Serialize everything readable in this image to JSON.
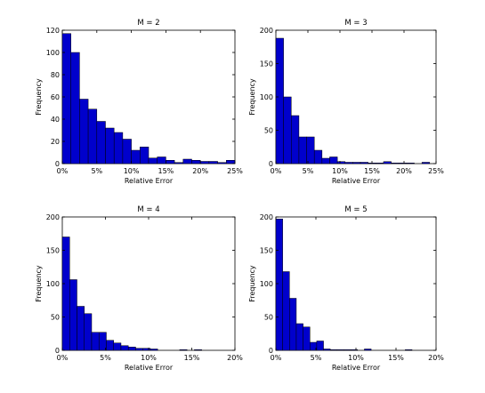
{
  "chart_data": [
    {
      "type": "bar",
      "title": "M = 2",
      "xlabel": "Relative Error",
      "ylabel": "Frequency",
      "xlim": [
        0,
        25
      ],
      "ylim": [
        0,
        120
      ],
      "xticks": [
        0,
        5,
        10,
        15,
        20,
        25
      ],
      "xtick_labels": [
        "0%",
        "5%",
        "10%",
        "15%",
        "20%",
        "25%"
      ],
      "yticks": [
        0,
        20,
        40,
        60,
        80,
        100,
        120
      ],
      "bin_start": 0,
      "bin_width": 1.25,
      "values": [
        117,
        100,
        58,
        49,
        38,
        32,
        28,
        22,
        12,
        15,
        5,
        6,
        3,
        1,
        4,
        3,
        2,
        2,
        1,
        3
      ],
      "bar_color": "#0000cc"
    },
    {
      "type": "bar",
      "title": "M = 3",
      "xlabel": "Relative Error",
      "ylabel": "Frequency",
      "xlim": [
        0,
        25
      ],
      "ylim": [
        0,
        200
      ],
      "xticks": [
        0,
        5,
        10,
        15,
        20,
        25
      ],
      "xtick_labels": [
        "0%",
        "5%",
        "10%",
        "15%",
        "20%",
        "25%"
      ],
      "yticks": [
        0,
        50,
        100,
        150,
        200
      ],
      "bin_start": 0,
      "bin_width": 1.2,
      "values": [
        188,
        100,
        72,
        40,
        40,
        20,
        8,
        10,
        3,
        2,
        2,
        2,
        1,
        1,
        3,
        1,
        1,
        1,
        0,
        2
      ],
      "bar_color": "#0000cc"
    },
    {
      "type": "bar",
      "title": "M = 4",
      "xlabel": "Relative Error",
      "ylabel": "Frequency",
      "xlim": [
        0,
        20
      ],
      "ylim": [
        0,
        200
      ],
      "xticks": [
        0,
        5,
        10,
        15,
        20
      ],
      "xtick_labels": [
        "0%",
        "5%",
        "10%",
        "15%",
        "20%"
      ],
      "yticks": [
        0,
        50,
        100,
        150,
        200
      ],
      "bin_start": 0,
      "bin_width": 0.85,
      "values": [
        170,
        106,
        66,
        55,
        27,
        27,
        15,
        11,
        7,
        5,
        3,
        3,
        2,
        0,
        0,
        0,
        1,
        0,
        1
      ],
      "bar_color": "#0000cc"
    },
    {
      "type": "bar",
      "title": "M = 5",
      "xlabel": "Relative Error",
      "ylabel": "Frequency",
      "xlim": [
        0,
        20
      ],
      "ylim": [
        0,
        200
      ],
      "xticks": [
        0,
        5,
        10,
        15,
        20
      ],
      "xtick_labels": [
        "0%",
        "5%",
        "10%",
        "15%",
        "20%"
      ],
      "yticks": [
        0,
        50,
        100,
        150,
        200
      ],
      "bin_start": 0,
      "bin_width": 0.85,
      "values": [
        197,
        118,
        78,
        40,
        35,
        12,
        14,
        2,
        1,
        1,
        1,
        1,
        0,
        2,
        0,
        0,
        0,
        0,
        0,
        1
      ],
      "bar_color": "#0000cc"
    }
  ]
}
